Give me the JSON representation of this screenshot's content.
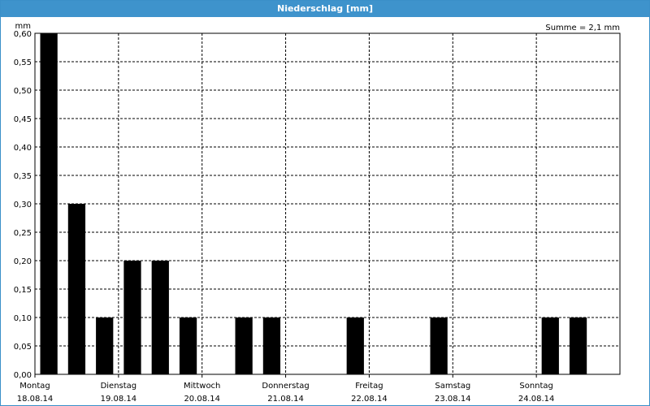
{
  "window": {
    "title": "Niederschlag [mm]",
    "sum_label": "Summe = 2,1 mm"
  },
  "colors": {
    "titlebar": "#3e93cc",
    "bars": "#000000",
    "grid": "#000000"
  },
  "chart_data": {
    "type": "bar",
    "title": "Niederschlag [mm]",
    "ylabel": "mm",
    "ylim": [
      0,
      0.6
    ],
    "yticks": [
      "0,00",
      "0,05",
      "0,10",
      "0,15",
      "0,20",
      "0,25",
      "0,30",
      "0,35",
      "0,40",
      "0,45",
      "0,50",
      "0,55",
      "0,60"
    ],
    "day_labels": [
      {
        "day": "Montag",
        "date": "18.08.14"
      },
      {
        "day": "Dienstag",
        "date": "19.08.14"
      },
      {
        "day": "Mittwoch",
        "date": "20.08.14"
      },
      {
        "day": "Donnerstag",
        "date": "21.08.14"
      },
      {
        "day": "Freitag",
        "date": "22.08.14"
      },
      {
        "day": "Samstag",
        "date": "23.08.14"
      },
      {
        "day": "Sonntag",
        "date": "24.08.14"
      }
    ],
    "interval_hours": 8,
    "values": [
      0.6,
      0.3,
      0.1,
      0.2,
      0.2,
      0.1,
      0,
      0.1,
      0.1,
      0,
      0,
      0.1,
      0,
      0,
      0.1,
      0,
      0,
      0,
      0.1,
      0.1,
      0
    ],
    "grid": true,
    "annotation": "Summe = 2,1 mm"
  }
}
